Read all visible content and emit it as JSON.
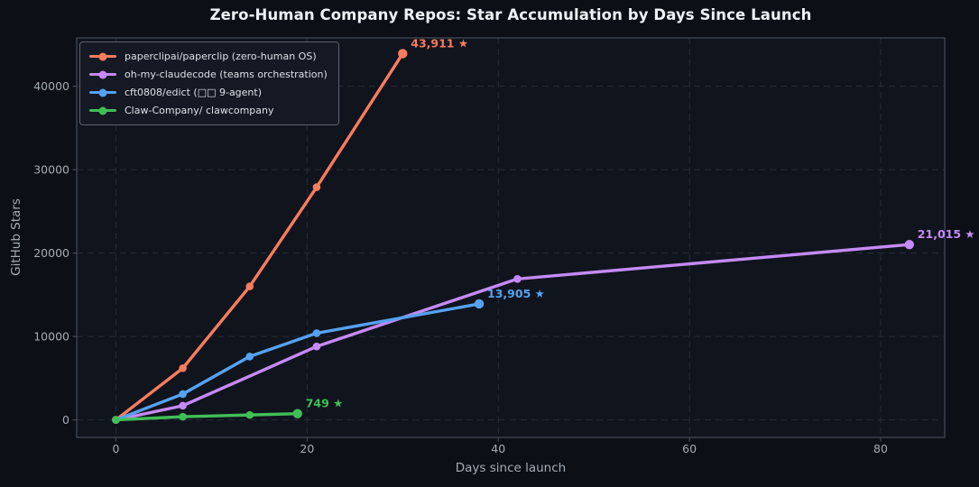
{
  "chart_data": {
    "type": "line",
    "title": "Zero-Human Company Repos: Star Accumulation by Days Since Launch",
    "xlabel": "Days since launch",
    "ylabel": "GitHub Stars",
    "xlim": [
      -4.1,
      86.7
    ],
    "ylim": [
      -2100,
      45800
    ],
    "xticks": [
      0,
      20,
      40,
      60,
      80
    ],
    "yticks": [
      0,
      10000,
      20000,
      30000,
      40000
    ],
    "grid": "dashed",
    "legend_position": "upper-left",
    "series": [
      {
        "name": "paperclipai/paperclip (zero-human OS)",
        "color": "#f87c5e",
        "x": [
          0,
          7,
          14,
          21,
          30
        ],
        "y": [
          0,
          6200,
          16000,
          27900,
          43911
        ],
        "annotation": "43,911 ★"
      },
      {
        "name": "oh-my-claudecode (teams orchestration)",
        "color": "#c68af8",
        "x": [
          0,
          7,
          21,
          42,
          83
        ],
        "y": [
          0,
          1700,
          8800,
          16900,
          21015
        ],
        "annotation": "21,015 ★"
      },
      {
        "name": "cft0808/edict (□□ 9-agent)",
        "color": "#55a2f3",
        "x": [
          0,
          7,
          14,
          21,
          38
        ],
        "y": [
          0,
          3100,
          7600,
          10400,
          13905
        ],
        "annotation": "13,905 ★"
      },
      {
        "name": "Claw-Company/ clawcompany",
        "color": "#40bf56",
        "x": [
          0,
          7,
          14,
          19
        ],
        "y": [
          0,
          380,
          590,
          749
        ],
        "annotation": "749 ★"
      }
    ],
    "style": {
      "figure_bg": "#0c0f15",
      "axes_bg": "#10141d",
      "grid_color": "#272d38",
      "spine_color": "#454d5a",
      "tick_color": "#a4acb7",
      "title_color": "#eef1f6"
    }
  }
}
